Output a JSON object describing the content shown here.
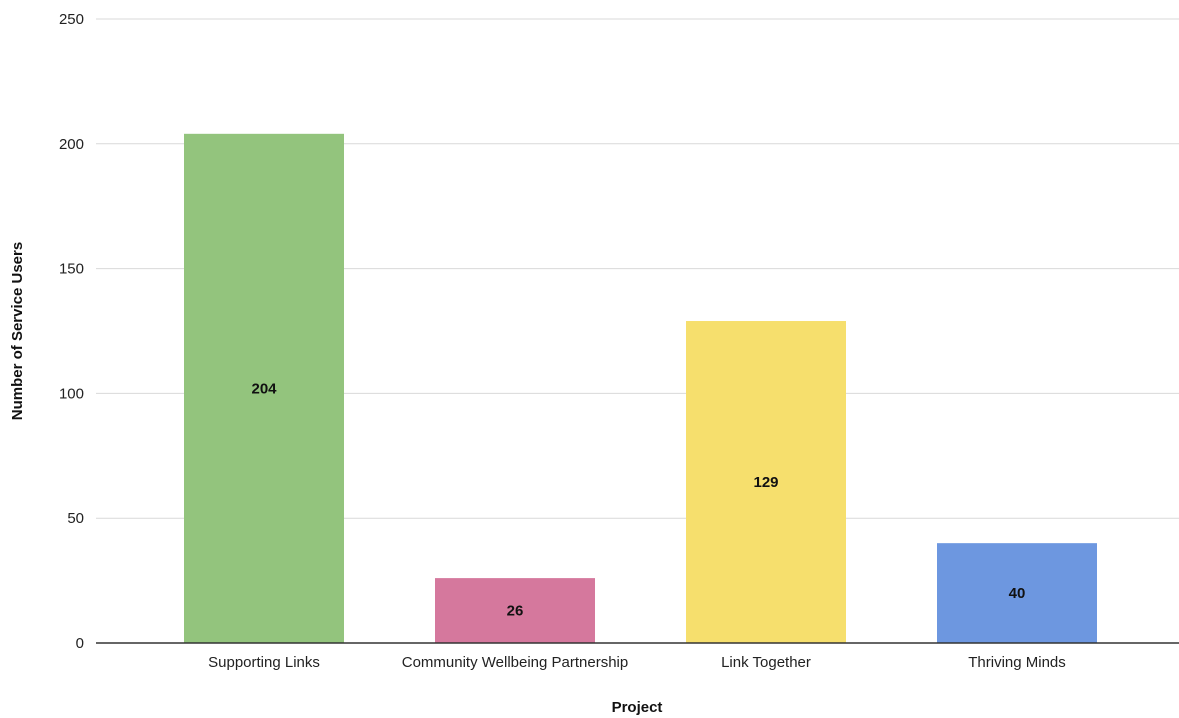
{
  "chart_data": {
    "type": "bar",
    "title": "",
    "xlabel": "Project",
    "ylabel": "Number of Service Users",
    "ylim": [
      0,
      250
    ],
    "yticks": [
      0,
      50,
      100,
      150,
      200,
      250
    ],
    "grid": true,
    "categories": [
      "Supporting Links",
      "Community Wellbeing Partnership",
      "Link Together",
      "Thriving Minds"
    ],
    "values": [
      204,
      26,
      129,
      40
    ],
    "data_labels": [
      "204",
      "26",
      "129",
      "40"
    ],
    "colors": [
      "#93c47d",
      "#d5789d",
      "#f6df6d",
      "#6d97e0"
    ]
  }
}
